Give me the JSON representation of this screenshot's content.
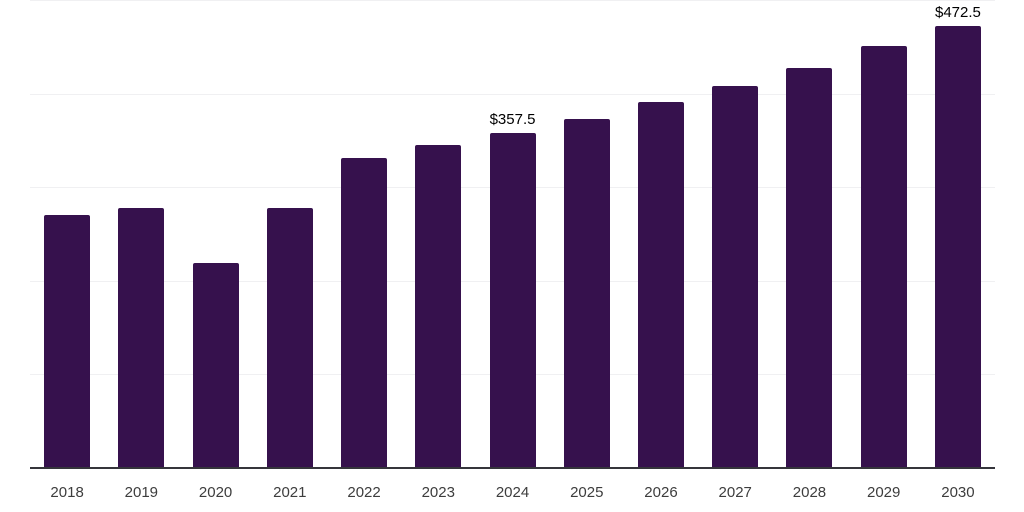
{
  "chart_data": {
    "type": "bar",
    "title": "",
    "xlabel": "",
    "ylabel": "",
    "categories": [
      "2018",
      "2019",
      "2020",
      "2021",
      "2022",
      "2023",
      "2024",
      "2025",
      "2026",
      "2027",
      "2028",
      "2029",
      "2030"
    ],
    "values": [
      270.0,
      277.5,
      218.5,
      278.0,
      331.0,
      345.0,
      357.5,
      373.0,
      391.5,
      408.5,
      427.5,
      451.0,
      472.5
    ],
    "data_labels": {
      "2024": "$357.5",
      "2030": "$472.5"
    },
    "ylim": [
      0,
      500
    ],
    "gridline_step": 100,
    "grid": "horizontal",
    "legend": "none",
    "bar_color": "#36114d",
    "axis_line_color": "#35353b",
    "gridline_color": "#f0f0f2",
    "tick_label_color": "#3d3d3d",
    "data_label_color": "#000000"
  }
}
